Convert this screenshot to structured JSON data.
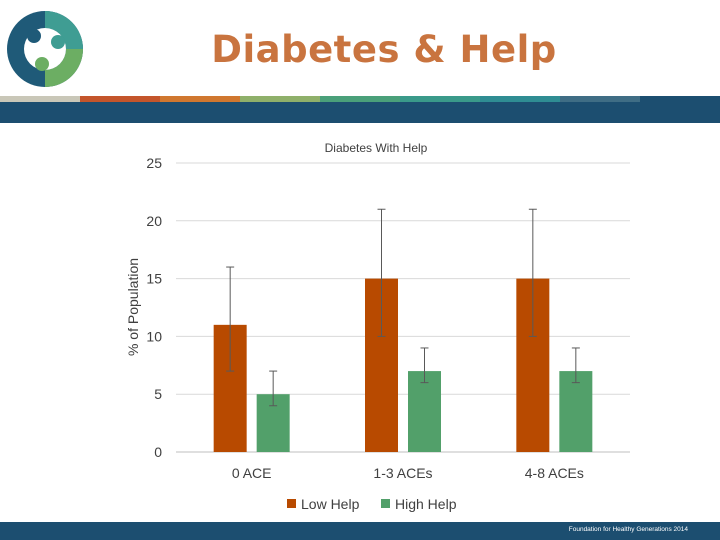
{
  "slide": {
    "title": "Diabetes & Help",
    "footer": "Foundation for Healthy Generations 2014"
  },
  "colors": {
    "title": "#c9743f",
    "low_help": "#b84a00",
    "high_help": "#52a06a",
    "stripe": [
      "#c9c7b8",
      "#c4552b",
      "#d0772f",
      "#8fb06a",
      "#4aa07a",
      "#3a9a8a",
      "#2f8d93",
      "#3f6d85"
    ],
    "band": "#1c4e70"
  },
  "chart_data": {
    "type": "bar",
    "title": "Diabetes With Help",
    "xlabel": "",
    "ylabel": "% of Population",
    "ylim": [
      0,
      25
    ],
    "yticks": [
      0,
      5,
      10,
      15,
      20,
      25
    ],
    "grid": true,
    "legend_position": "bottom",
    "categories": [
      "0 ACE",
      "1-3 ACEs",
      "4-8 ACEs"
    ],
    "series": [
      {
        "name": "Low Help",
        "values": [
          11,
          15,
          15
        ],
        "error_low": [
          7,
          10,
          10
        ],
        "error_high": [
          16,
          21,
          21
        ]
      },
      {
        "name": "High Help",
        "values": [
          5,
          7,
          7
        ],
        "error_low": [
          4,
          6,
          6
        ],
        "error_high": [
          7,
          9,
          9
        ]
      }
    ]
  }
}
